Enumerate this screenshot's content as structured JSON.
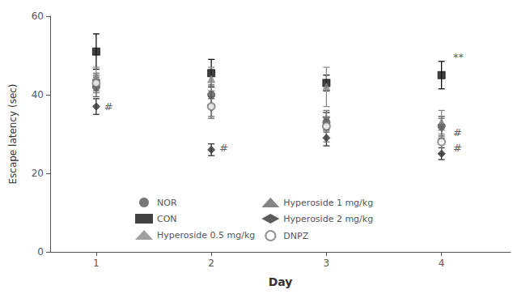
{
  "chart_data": {
    "type": "scatter",
    "x": [
      1,
      2,
      3,
      4
    ],
    "series": [
      {
        "name": "NOR",
        "color": "#555555",
        "marker": "circle",
        "values": [
          42.0,
          40.0,
          33.0,
          32.0
        ],
        "errors": [
          2.5,
          2.5,
          2.5,
          2.5
        ]
      },
      {
        "name": "CON",
        "color": "#111111",
        "marker": "square",
        "values": [
          51.0,
          45.5,
          43.0,
          45.0
        ],
        "errors": [
          4.5,
          3.5,
          2.0,
          3.5
        ]
      },
      {
        "name": "Hyperoside 0.5 mg/kg",
        "color": "#888888",
        "marker": "triangle",
        "values": [
          44.5,
          44.0,
          42.0,
          33.0
        ],
        "errors": [
          2.5,
          3.0,
          5.0,
          3.0
        ]
      },
      {
        "name": "Hyperoside 1 mg/kg",
        "color": "#666666",
        "marker": "triangle_down",
        "values": [
          43.0,
          36.5,
          33.5,
          31.5
        ],
        "errors": [
          2.0,
          2.5,
          2.0,
          2.5
        ]
      },
      {
        "name": "Hyperoside 2 mg/kg",
        "color": "#333333",
        "marker": "diamond",
        "values": [
          37.0,
          26.0,
          29.0,
          25.0
        ],
        "errors": [
          2.0,
          1.5,
          2.0,
          1.5
        ]
      },
      {
        "name": "DNPZ",
        "color": "#777777",
        "marker": "circle_open",
        "values": [
          43.0,
          37.0,
          32.0,
          28.0
        ],
        "errors": [
          2.5,
          2.5,
          4.0,
          3.0
        ]
      }
    ],
    "xlabel": "Day",
    "ylabel": "Escape latency (sec)",
    "xlim": [
      0.6,
      4.6
    ],
    "ylim": [
      0,
      60
    ],
    "xticks": [
      1,
      2,
      3,
      4
    ],
    "yticks": [
      0,
      20,
      40,
      60
    ],
    "annotations": [
      {
        "text": "#",
        "x": 1.07,
        "y": 37.0
      },
      {
        "text": "#",
        "x": 2.07,
        "y": 26.5
      },
      {
        "text": "**",
        "x": 4.1,
        "y": 49.5
      },
      {
        "text": "#",
        "x": 4.1,
        "y": 30.5
      },
      {
        "text": "#",
        "x": 4.1,
        "y": 26.5
      }
    ],
    "legend": "lower left",
    "grid": false
  }
}
